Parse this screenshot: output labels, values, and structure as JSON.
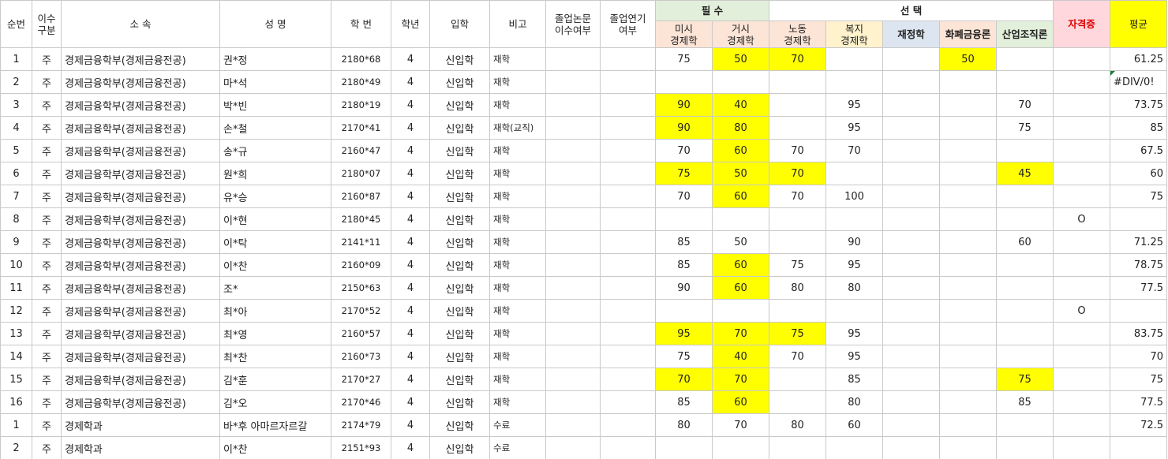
{
  "header": {
    "groups": [
      {
        "label": "필  수"
      },
      {
        "label": "선  택"
      }
    ],
    "columns": [
      "순번",
      "이수\n구분",
      "소          속",
      "성      명",
      "학      번",
      "학년",
      "입학",
      "비고",
      "졸업논문\n이수여부",
      "졸업연기\n여부",
      "미시\n경제학",
      "거시\n경제학",
      "노동\n경제학",
      "복지\n경제학",
      "재정학",
      "화폐금융론",
      "산업조직론",
      "자격증",
      "평균"
    ]
  },
  "rows": [
    {
      "cells": [
        1,
        "주",
        "경제금융학부(경제금융전공)",
        "권*정",
        "2180*68",
        4,
        "신입학",
        "재학",
        null,
        null,
        75,
        50,
        70,
        null,
        null,
        50,
        null,
        null,
        61.25
      ],
      "highlight": [
        11,
        12,
        15
      ]
    },
    {
      "cells": [
        2,
        "주",
        "경제금융학부(경제금융전공)",
        "마*석",
        "2180*49",
        4,
        "신입학",
        "재학",
        null,
        null,
        null,
        null,
        null,
        null,
        null,
        null,
        null,
        null,
        "#DIV/0!"
      ],
      "highlight": []
    },
    {
      "cells": [
        3,
        "주",
        "경제금융학부(경제금융전공)",
        "박*빈",
        "2180*19",
        4,
        "신입학",
        "재학",
        null,
        null,
        90,
        40,
        null,
        95,
        null,
        null,
        70,
        null,
        73.75
      ],
      "highlight": [
        10,
        11
      ]
    },
    {
      "cells": [
        4,
        "주",
        "경제금융학부(경제금융전공)",
        "손*철",
        "2170*41",
        4,
        "신입학",
        "재학(교직)",
        null,
        null,
        90,
        80,
        null,
        95,
        null,
        null,
        75,
        null,
        85
      ],
      "highlight": [
        10,
        11
      ]
    },
    {
      "cells": [
        5,
        "주",
        "경제금융학부(경제금융전공)",
        "송*규",
        "2160*47",
        4,
        "신입학",
        "재학",
        null,
        null,
        70,
        60,
        70,
        70,
        null,
        null,
        null,
        null,
        67.5
      ],
      "highlight": [
        11
      ]
    },
    {
      "cells": [
        6,
        "주",
        "경제금융학부(경제금융전공)",
        "원*희",
        "2180*07",
        4,
        "신입학",
        "재학",
        null,
        null,
        75,
        50,
        70,
        null,
        null,
        null,
        45,
        null,
        60
      ],
      "highlight": [
        10,
        11,
        12,
        16
      ]
    },
    {
      "cells": [
        7,
        "주",
        "경제금융학부(경제금융전공)",
        "유*승",
        "2160*87",
        4,
        "신입학",
        "재학",
        null,
        null,
        70,
        60,
        70,
        100,
        null,
        null,
        null,
        null,
        75
      ],
      "highlight": [
        11
      ]
    },
    {
      "cells": [
        8,
        "주",
        "경제금융학부(경제금융전공)",
        "이*현",
        "2180*45",
        4,
        "신입학",
        "재학",
        null,
        null,
        null,
        null,
        null,
        null,
        null,
        null,
        null,
        "O",
        null
      ],
      "highlight": []
    },
    {
      "cells": [
        9,
        "주",
        "경제금융학부(경제금융전공)",
        "이*탁",
        "2141*11",
        4,
        "신입학",
        "재학",
        null,
        null,
        85,
        50,
        null,
        90,
        null,
        null,
        60,
        null,
        71.25
      ],
      "highlight": []
    },
    {
      "cells": [
        10,
        "주",
        "경제금융학부(경제금융전공)",
        "이*찬",
        "2160*09",
        4,
        "신입학",
        "재학",
        null,
        null,
        85,
        60,
        75,
        95,
        null,
        null,
        null,
        null,
        78.75
      ],
      "highlight": [
        11
      ]
    },
    {
      "cells": [
        11,
        "주",
        "경제금융학부(경제금융전공)",
        "조*",
        "2150*63",
        4,
        "신입학",
        "재학",
        null,
        null,
        90,
        60,
        80,
        80,
        null,
        null,
        null,
        null,
        77.5
      ],
      "highlight": [
        11
      ]
    },
    {
      "cells": [
        12,
        "주",
        "경제금융학부(경제금융전공)",
        "최*아",
        "2170*52",
        4,
        "신입학",
        "재학",
        null,
        null,
        null,
        null,
        null,
        null,
        null,
        null,
        null,
        "O",
        null
      ],
      "highlight": []
    },
    {
      "cells": [
        13,
        "주",
        "경제금융학부(경제금융전공)",
        "최*영",
        "2160*57",
        4,
        "신입학",
        "재학",
        null,
        null,
        95,
        70,
        75,
        95,
        null,
        null,
        null,
        null,
        83.75
      ],
      "highlight": [
        10,
        11,
        12
      ]
    },
    {
      "cells": [
        14,
        "주",
        "경제금융학부(경제금융전공)",
        "최*찬",
        "2160*73",
        4,
        "신입학",
        "재학",
        null,
        null,
        75,
        40,
        70,
        95,
        null,
        null,
        null,
        null,
        70
      ],
      "highlight": [
        11
      ]
    },
    {
      "cells": [
        15,
        "주",
        "경제금융학부(경제금융전공)",
        "김*훈",
        "2170*27",
        4,
        "신입학",
        "재학",
        null,
        null,
        70,
        70,
        null,
        85,
        null,
        null,
        75,
        null,
        75
      ],
      "highlight": [
        10,
        11,
        16
      ]
    },
    {
      "cells": [
        16,
        "주",
        "경제금융학부(경제금융전공)",
        "김*오",
        "2170*46",
        4,
        "신입학",
        "재학",
        null,
        null,
        85,
        60,
        null,
        80,
        null,
        null,
        85,
        null,
        77.5
      ],
      "highlight": [
        11
      ]
    },
    {
      "cells": [
        1,
        "주",
        "경제학과",
        "바*후 아마르자르갈",
        "2174*79",
        4,
        "신입학",
        "수료",
        null,
        null,
        80,
        70,
        80,
        60,
        null,
        null,
        null,
        null,
        72.5
      ],
      "highlight": []
    },
    {
      "cells": [
        2,
        "주",
        "경제학과",
        "이*찬",
        "2151*93",
        4,
        "신입학",
        "수료",
        null,
        null,
        null,
        null,
        null,
        null,
        null,
        null,
        null,
        null,
        null
      ],
      "highlight": []
    }
  ]
}
